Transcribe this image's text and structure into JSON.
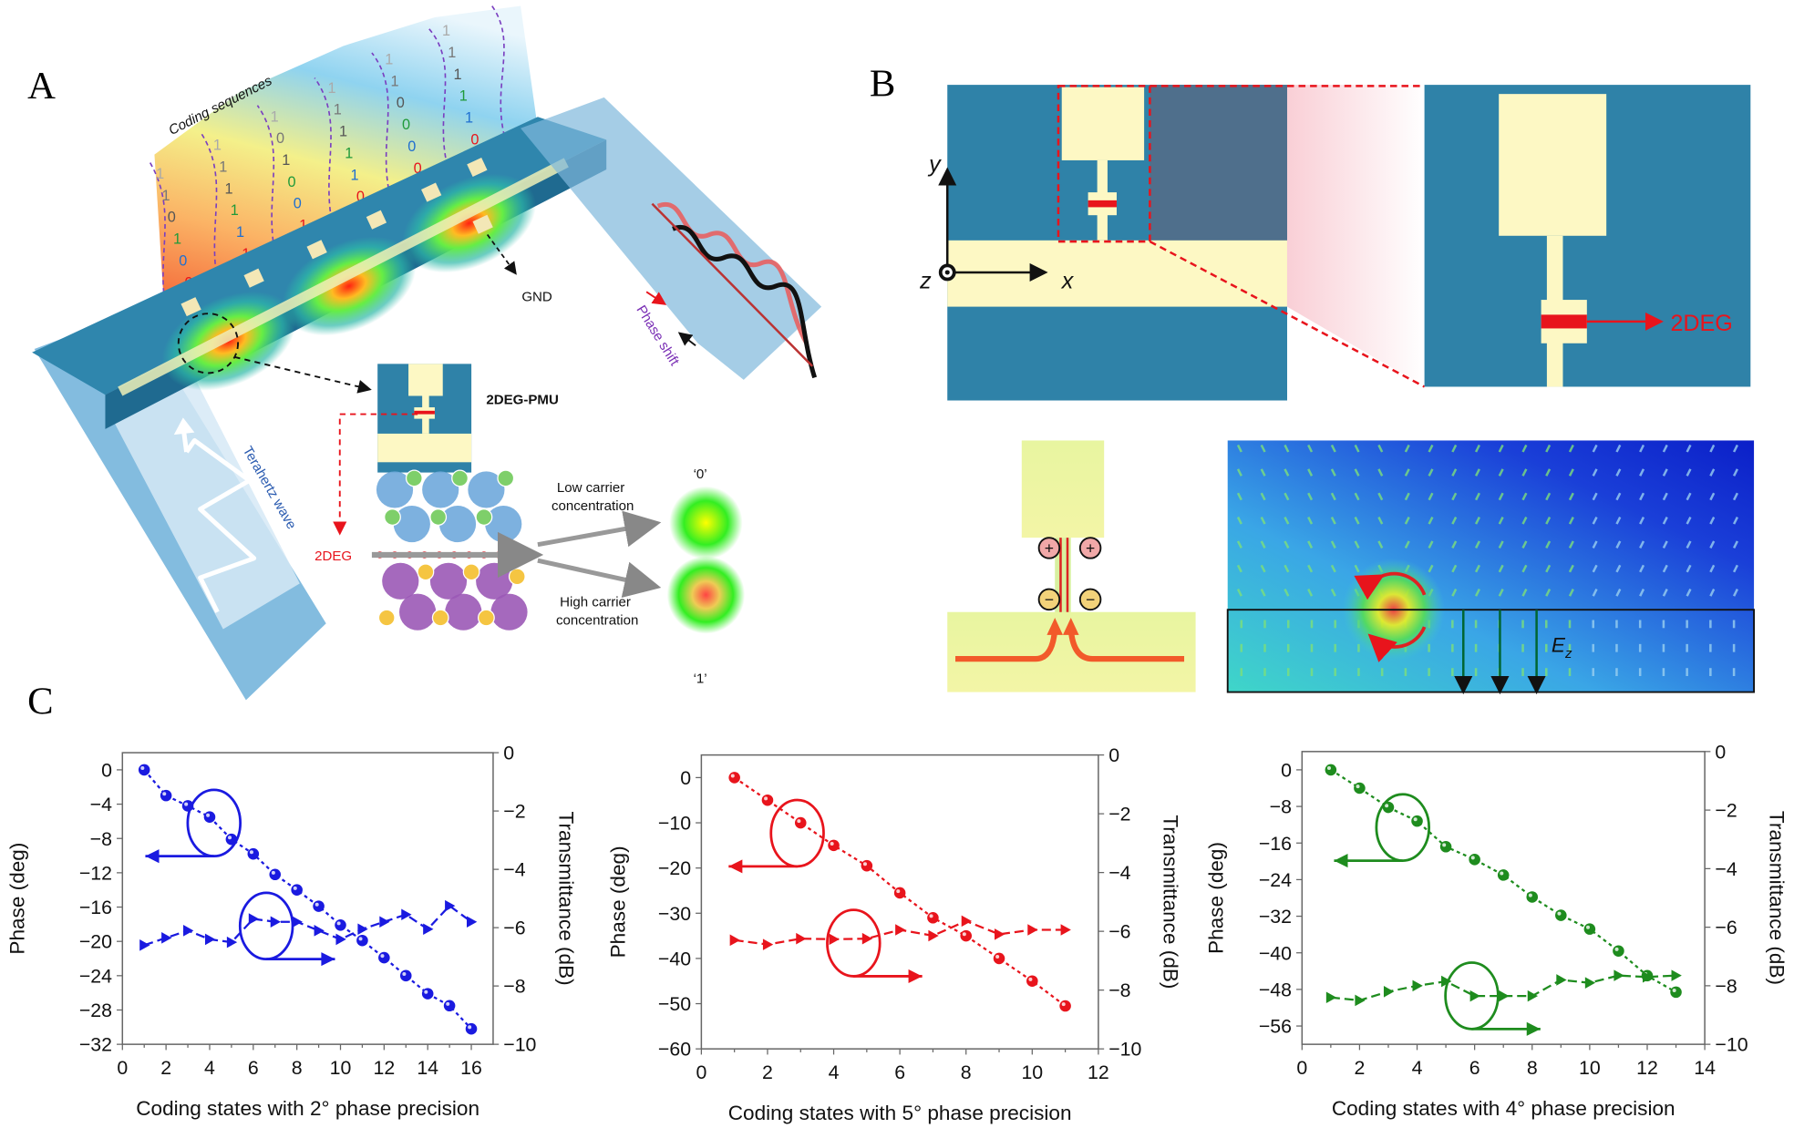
{
  "panels": {
    "a": {
      "label": "A",
      "coding_title": "Coding sequences",
      "coding_columns": [
        [
          "0",
          "0",
          "0",
          "1",
          "0",
          "1",
          "1"
        ],
        [
          "0",
          "1",
          "1",
          "1",
          "1",
          "1",
          "1"
        ],
        [
          "0",
          "1",
          "0",
          "0",
          "1",
          "0",
          "1"
        ],
        [
          "0",
          "0",
          "1",
          "1",
          "1",
          "1",
          "1"
        ],
        [
          "0",
          "0",
          "0",
          "0",
          "0",
          "1",
          "1"
        ],
        [
          "0",
          "0",
          "1",
          "1",
          "1",
          "1",
          "1"
        ]
      ],
      "digit_colors": [
        "#111111",
        "#e8141c",
        "#1f6fd0",
        "#1f9a3a",
        "#555555",
        "#777777",
        "#aaaaaa"
      ],
      "gnd": "GND",
      "phase_shift": "Phase shift",
      "terahertz_wave": "Terahertz wave",
      "pmu_label": "2DEG-PMU",
      "twodeg_label": "2DEG",
      "low_carrier": [
        "Low carrier",
        "concentration"
      ],
      "high_carrier": [
        "High carrier",
        "concentration"
      ],
      "state_0": "‘0’",
      "state_1": "‘1’"
    },
    "b": {
      "label": "B",
      "axis_y": "y",
      "axis_x": "x",
      "axis_z": "z",
      "twodeg_label": "2DEG",
      "ez_label": "E",
      "ez_sub": "z"
    },
    "c": {
      "label": "C"
    }
  },
  "colors": {
    "substrate": "#2f82a8",
    "metal": "#fdf8c4",
    "twodeg": "#e8141c",
    "series_2deg": "#1a1ae0",
    "series_5deg": "#e8141c",
    "series_4deg": "#1e8c1e"
  },
  "chart_data": [
    {
      "type": "line",
      "xlabel": "Coding states with 2° phase precision",
      "ylabel": "Phase (deg)",
      "y2label": "Transmittance (dB)",
      "xlim": [
        0,
        17
      ],
      "xticks": [
        0,
        2,
        4,
        6,
        8,
        10,
        12,
        14,
        16
      ],
      "ylim": [
        -32,
        2
      ],
      "yticks": [
        0,
        -4,
        -8,
        -12,
        -16,
        -20,
        -24,
        -28,
        -32
      ],
      "y2lim": [
        -10,
        0
      ],
      "y2ticks": [
        0,
        -2,
        -4,
        -6,
        -8,
        -10
      ],
      "color": "#1a1ae0",
      "x": [
        1,
        2,
        3,
        4,
        5,
        6,
        7,
        8,
        9,
        10,
        11,
        12,
        13,
        14,
        15,
        16
      ],
      "series": [
        {
          "axis": "left",
          "marker": "sphere",
          "values": [
            0,
            -3,
            -4.2,
            -5.5,
            -8.1,
            -9.8,
            -12.2,
            -14,
            -15.9,
            -18.1,
            -19.9,
            -21.9,
            -24,
            -26.1,
            -27.5,
            -30.2
          ]
        },
        {
          "axis": "right",
          "marker": "triangle",
          "values": [
            -6.6,
            -6.35,
            -6.1,
            -6.4,
            -6.5,
            -5.7,
            -5.8,
            -5.8,
            -6.1,
            -6.4,
            -6.05,
            -5.8,
            -5.55,
            -6.05,
            -5.25,
            -5.8
          ]
        }
      ]
    },
    {
      "type": "line",
      "xlabel": "Coding states with 5° phase precision",
      "ylabel": "Phase (deg)",
      "y2label": "Transmittance (dB)",
      "xlim": [
        0,
        12
      ],
      "xticks": [
        0,
        2,
        4,
        6,
        8,
        10,
        12
      ],
      "ylim": [
        -60,
        5
      ],
      "yticks": [
        0,
        -10,
        -20,
        -30,
        -40,
        -50,
        -60
      ],
      "y2lim": [
        -10,
        0
      ],
      "y2ticks": [
        0,
        -2,
        -4,
        -6,
        -8,
        -10
      ],
      "color": "#e8141c",
      "x": [
        1,
        2,
        3,
        4,
        5,
        6,
        7,
        8,
        9,
        10,
        11
      ],
      "series": [
        {
          "axis": "left",
          "marker": "sphere",
          "values": [
            0,
            -5,
            -10,
            -15,
            -19.5,
            -25.5,
            -31,
            -35,
            -40,
            -45,
            -50.5
          ]
        },
        {
          "axis": "right",
          "marker": "triangle",
          "values": [
            -6.3,
            -6.45,
            -6.25,
            -6.27,
            -6.25,
            -5.95,
            -6.15,
            -5.65,
            -6.1,
            -5.95,
            -5.95
          ]
        }
      ]
    },
    {
      "type": "line",
      "xlabel": "Coding states with 4° phase precision",
      "ylabel": "Phase (deg)",
      "y2label": "Transmittance (dB)",
      "xlim": [
        0,
        14
      ],
      "xticks": [
        0,
        2,
        4,
        6,
        8,
        10,
        12,
        14
      ],
      "ylim": [
        -60,
        4
      ],
      "yticks": [
        0,
        -8,
        -16,
        -24,
        -32,
        -40,
        -48,
        -56
      ],
      "y2lim": [
        -10,
        0
      ],
      "y2ticks": [
        0,
        -2,
        -4,
        -6,
        -8,
        -10
      ],
      "color": "#1e8c1e",
      "x": [
        1,
        2,
        3,
        4,
        5,
        6,
        7,
        8,
        9,
        10,
        11,
        12,
        13
      ],
      "series": [
        {
          "axis": "left",
          "marker": "sphere",
          "values": [
            0,
            -4,
            -8.2,
            -11.2,
            -16.8,
            -19.6,
            -23,
            -27.8,
            -31.8,
            -34.8,
            -39.6,
            -45,
            -48.6
          ]
        },
        {
          "axis": "right",
          "marker": "triangle",
          "values": [
            -8.4,
            -8.5,
            -8.2,
            -8.0,
            -7.85,
            -8.35,
            -8.35,
            -8.35,
            -7.8,
            -7.9,
            -7.65,
            -7.7,
            -7.65
          ]
        }
      ]
    }
  ]
}
